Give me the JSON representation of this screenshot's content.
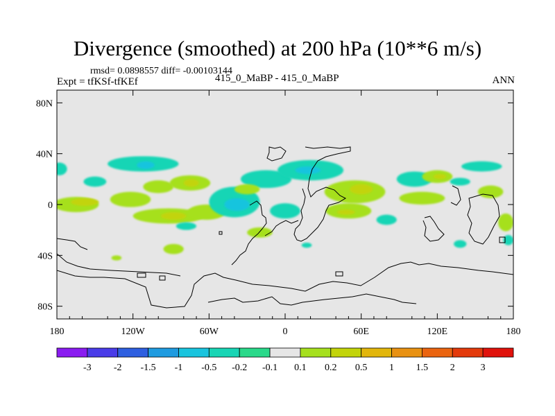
{
  "header": {
    "title": "Divergence (smoothed) at 200 hPa (10**6 m/s)",
    "stats": "rmsd= 0.0898557 diff= -0.00103144",
    "expt": "Expt = tfKSf-tfKEf",
    "case_pair": "415_0_MaBP - 415_0_MaBP",
    "season": "ANN"
  },
  "chart_data": {
    "type": "heatmap",
    "title": "Divergence (smoothed) at 200 hPa (10**6 m/s)",
    "subtitle": "415_0_MaBP - 415_0_MaBP",
    "units": "10**6 m/s",
    "xlim": [
      -180,
      180
    ],
    "ylim": [
      -90,
      90
    ],
    "x_ticks": [
      {
        "value": -180,
        "label": "180"
      },
      {
        "value": -120,
        "label": "120W"
      },
      {
        "value": -60,
        "label": "60W"
      },
      {
        "value": 0,
        "label": "0"
      },
      {
        "value": 60,
        "label": "60E"
      },
      {
        "value": 120,
        "label": "120E"
      },
      {
        "value": 180,
        "label": "180"
      }
    ],
    "y_ticks": [
      {
        "value": 80,
        "label": "80N"
      },
      {
        "value": 40,
        "label": "40N"
      },
      {
        "value": 0,
        "label": "0"
      },
      {
        "value": -40,
        "label": "40S"
      },
      {
        "value": -80,
        "label": "80S"
      }
    ],
    "colorbar": {
      "boundaries": [
        "-3",
        "-2",
        "-1.5",
        "-1",
        "-0.5",
        "-0.2",
        "-0.1",
        "0.1",
        "0.2",
        "0.5",
        "1",
        "1.5",
        "2",
        "3"
      ],
      "colors": [
        "#8a1cf0",
        "#4a3ce8",
        "#2e5fe0",
        "#1f9be0",
        "#19c4de",
        "#18d5b5",
        "#2ad98a",
        "#e6e6e6",
        "#a6e01e",
        "#c2d40a",
        "#e2b60c",
        "#e89112",
        "#ea6410",
        "#e33a0c",
        "#e0120c"
      ]
    },
    "neutral_color": "#e6e6e6",
    "regions": [
      {
        "level": -0.2,
        "lon": -178,
        "lat": 28,
        "rlon": 6,
        "rlat": 5
      },
      {
        "level": -0.2,
        "lon": -150,
        "lat": 18,
        "rlon": 9,
        "rlat": 4
      },
      {
        "level": -0.2,
        "lon": -112,
        "lat": 32,
        "rlon": 28,
        "rlat": 6
      },
      {
        "level": -0.5,
        "lon": -110,
        "lat": 31,
        "rlon": 7,
        "rlat": 3
      },
      {
        "level": 0.2,
        "lon": -100,
        "lat": 14,
        "rlon": 12,
        "rlat": 5
      },
      {
        "level": 0.2,
        "lon": -75,
        "lat": 17,
        "rlon": 16,
        "rlat": 6
      },
      {
        "level": 0.5,
        "lon": -74,
        "lat": 17,
        "rlon": 6,
        "rlat": 3
      },
      {
        "level": 0.2,
        "lon": -165,
        "lat": 0,
        "rlon": 18,
        "rlat": 6
      },
      {
        "level": 0.5,
        "lon": -158,
        "lat": 2,
        "rlon": 11,
        "rlat": 3
      },
      {
        "level": 0.2,
        "lon": -122,
        "lat": 4,
        "rlon": 16,
        "rlat": 6
      },
      {
        "level": 0.2,
        "lon": -92,
        "lat": -9,
        "rlon": 28,
        "rlat": 6
      },
      {
        "level": 0.5,
        "lon": -88,
        "lat": -9,
        "rlon": 10,
        "rlat": 3
      },
      {
        "level": 0.2,
        "lon": -62,
        "lat": -6,
        "rlon": 15,
        "rlat": 6
      },
      {
        "level": -0.2,
        "lon": -40,
        "lat": 2,
        "rlon": 20,
        "rlat": 12
      },
      {
        "level": -0.5,
        "lon": -38,
        "lat": 0,
        "rlon": 10,
        "rlat": 5
      },
      {
        "level": -0.2,
        "lon": -78,
        "lat": -17,
        "rlon": 8,
        "rlat": 3
      },
      {
        "level": -0.2,
        "lon": -15,
        "lat": 20,
        "rlon": 20,
        "rlat": 7
      },
      {
        "level": 0.2,
        "lon": -30,
        "lat": 12,
        "rlon": 10,
        "rlat": 4
      },
      {
        "level": -0.2,
        "lon": 0,
        "lat": -5,
        "rlon": 12,
        "rlat": 6
      },
      {
        "level": 0.2,
        "lon": -20,
        "lat": -22,
        "rlon": 10,
        "rlat": 4
      },
      {
        "level": -0.2,
        "lon": 20,
        "lat": 27,
        "rlon": 26,
        "rlat": 8
      },
      {
        "level": -0.5,
        "lon": 18,
        "lat": 27,
        "rlon": 10,
        "rlat": 3
      },
      {
        "level": 0.2,
        "lon": 55,
        "lat": 10,
        "rlon": 24,
        "rlat": 9
      },
      {
        "level": 0.5,
        "lon": 60,
        "lat": 12,
        "rlon": 9,
        "rlat": 4
      },
      {
        "level": 0.2,
        "lon": 50,
        "lat": -5,
        "rlon": 18,
        "rlat": 6
      },
      {
        "level": 0.5,
        "lon": 48,
        "lat": -6,
        "rlon": 7,
        "rlat": 2
      },
      {
        "level": -0.2,
        "lon": 80,
        "lat": -12,
        "rlon": 8,
        "rlat": 4
      },
      {
        "level": -0.2,
        "lon": 102,
        "lat": 20,
        "rlon": 14,
        "rlat": 6
      },
      {
        "level": 0.2,
        "lon": 108,
        "lat": 5,
        "rlon": 18,
        "rlat": 5
      },
      {
        "level": 0.2,
        "lon": 120,
        "lat": 22,
        "rlon": 12,
        "rlat": 5
      },
      {
        "level": 0.5,
        "lon": 122,
        "lat": 22,
        "rlon": 5,
        "rlat": 2
      },
      {
        "level": -0.2,
        "lon": 155,
        "lat": 30,
        "rlon": 16,
        "rlat": 4
      },
      {
        "level": -0.2,
        "lon": 138,
        "lat": 18,
        "rlon": 8,
        "rlat": 3
      },
      {
        "level": 0.2,
        "lon": 162,
        "lat": 10,
        "rlon": 10,
        "rlat": 5
      },
      {
        "level": 0.2,
        "lon": 174,
        "lat": -14,
        "rlon": 6,
        "rlat": 7
      },
      {
        "level": -0.2,
        "lon": 176,
        "lat": -28,
        "rlon": 4,
        "rlat": 4
      },
      {
        "level": -0.2,
        "lon": 138,
        "lat": -31,
        "rlon": 5,
        "rlat": 3
      },
      {
        "level": 0.2,
        "lon": -88,
        "lat": -35,
        "rlon": 8,
        "rlat": 4
      },
      {
        "level": 0.2,
        "lon": -133,
        "lat": -42,
        "rlon": 4,
        "rlat": 2
      },
      {
        "level": -0.2,
        "lon": 17,
        "lat": -32,
        "rlon": 4,
        "rlat": 2
      }
    ]
  }
}
